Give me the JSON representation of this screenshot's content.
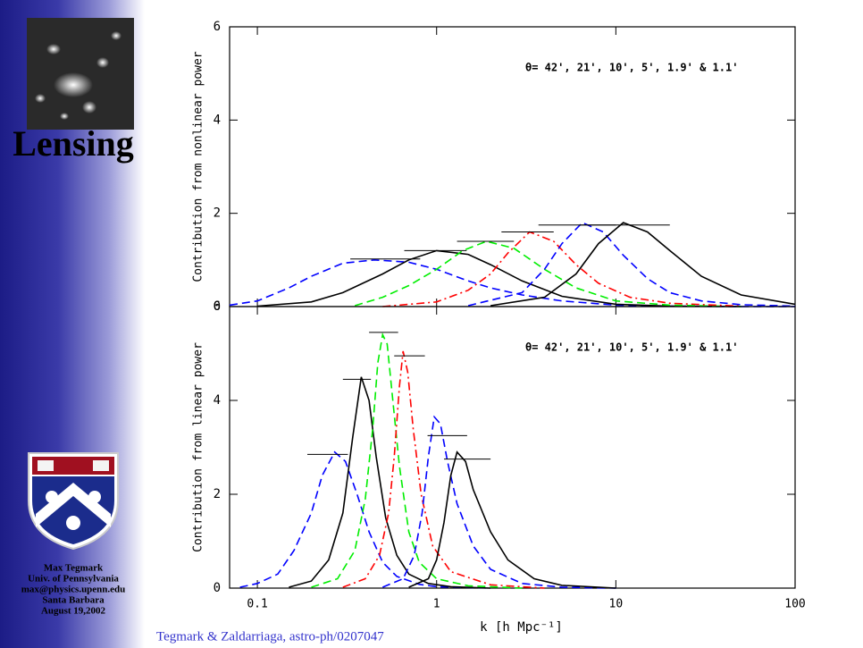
{
  "sidebar": {
    "title": "Lensing",
    "author": "Max Tegmark",
    "affiliation": "Univ. of Pennsylvania",
    "email": "max@physics.upenn.edu",
    "place": "Santa Barbara",
    "date": "August 19,2002"
  },
  "caption": "Tegmark & Zaldarriaga, astro-ph/0207047",
  "chart_data": [
    {
      "type": "line",
      "ylabel": "Contribution from nonlinear power",
      "annotation": "θ= 42', 21', 10', 5', 1.9' & 1.1'",
      "log_x": true,
      "xlim": [
        0.07,
        100
      ],
      "xticks": [
        0.1,
        1,
        10,
        100
      ],
      "ylim": [
        0,
        6
      ],
      "yticks": [
        0,
        2,
        4,
        6
      ],
      "series": [
        {
          "color": "#0000ff",
          "style": "dashed",
          "x": [
            0.07,
            0.1,
            0.15,
            0.2,
            0.3,
            0.45,
            0.7,
            1,
            1.5,
            2,
            3,
            5,
            10,
            20,
            50,
            100
          ],
          "values": [
            0.03,
            0.12,
            0.4,
            0.65,
            0.93,
            1.0,
            0.95,
            0.8,
            0.55,
            0.4,
            0.25,
            0.12,
            0.03,
            0.01,
            0,
            0
          ],
          "range": [
            0.33,
            0.81
          ],
          "range_y": 1.02
        },
        {
          "color": "#000000",
          "style": "solid",
          "x": [
            0.1,
            0.2,
            0.3,
            0.5,
            0.7,
            1,
            1.5,
            2,
            3,
            5,
            10,
            20,
            50
          ],
          "values": [
            0.01,
            0.1,
            0.3,
            0.7,
            1.0,
            1.2,
            1.12,
            0.9,
            0.55,
            0.22,
            0.05,
            0.01,
            0
          ],
          "range": [
            0.66,
            1.47
          ],
          "range_y": 1.2
        },
        {
          "color": "#00ee00",
          "style": "dashed",
          "x": [
            0.35,
            0.5,
            0.7,
            1,
            1.4,
            1.9,
            2.7,
            4,
            6,
            10,
            20,
            50
          ],
          "values": [
            0.02,
            0.2,
            0.45,
            0.8,
            1.2,
            1.4,
            1.25,
            0.8,
            0.4,
            0.12,
            0.03,
            0
          ],
          "range": [
            1.3,
            2.7
          ],
          "range_y": 1.4
        },
        {
          "color": "#ff0000",
          "style": "dashdot",
          "x": [
            0.5,
            1,
            1.5,
            2,
            2.5,
            3.3,
            4.5,
            6,
            8,
            12,
            20,
            50
          ],
          "values": [
            0,
            0.1,
            0.35,
            0.7,
            1.15,
            1.6,
            1.4,
            0.9,
            0.5,
            0.2,
            0.07,
            0.01
          ],
          "range": [
            2.3,
            4.5
          ],
          "range_y": 1.6
        },
        {
          "color": "#0000ff",
          "style": "dashed",
          "x": [
            1.5,
            3,
            4,
            5,
            6.5,
            8.5,
            11,
            15,
            20,
            30,
            50,
            100
          ],
          "values": [
            0.02,
            0.3,
            0.8,
            1.35,
            1.8,
            1.6,
            1.1,
            0.6,
            0.3,
            0.12,
            0.04,
            0.01
          ],
          "range": [
            3.7,
            10
          ],
          "range_y": 1.75
        },
        {
          "color": "#000000",
          "style": "solid",
          "x": [
            2,
            4,
            6,
            8,
            11,
            15,
            20,
            30,
            50,
            100
          ],
          "values": [
            0.02,
            0.2,
            0.7,
            1.35,
            1.8,
            1.6,
            1.2,
            0.65,
            0.25,
            0.05
          ],
          "range": [
            6.3,
            20
          ],
          "range_y": 1.75
        }
      ]
    },
    {
      "type": "line",
      "ylabel": "Contribution from linear power",
      "xlabel": "k [h Mpc⁻¹]",
      "annotation": "θ= 42', 21', 10', 5', 1.9' & 1.1'",
      "log_x": true,
      "xlim": [
        0.07,
        100
      ],
      "xticks": [
        0.1,
        1,
        10,
        100
      ],
      "ylim": [
        0,
        6
      ],
      "yticks": [
        0,
        2,
        4,
        6
      ],
      "series": [
        {
          "color": "#0000ff",
          "style": "dashed",
          "x": [
            0.08,
            0.1,
            0.13,
            0.16,
            0.2,
            0.23,
            0.27,
            0.31,
            0.36,
            0.42,
            0.5,
            0.6,
            0.8,
            1,
            2
          ],
          "values": [
            0.02,
            0.1,
            0.3,
            0.8,
            1.6,
            2.4,
            2.9,
            2.7,
            2.0,
            1.2,
            0.55,
            0.25,
            0.08,
            0.03,
            0
          ],
          "range": [
            0.19,
            0.32
          ],
          "range_y": 2.85
        },
        {
          "color": "#000000",
          "style": "solid",
          "x": [
            0.15,
            0.2,
            0.25,
            0.3,
            0.34,
            0.38,
            0.42,
            0.46,
            0.52,
            0.6,
            0.7,
            0.9,
            1.2,
            2
          ],
          "values": [
            0.02,
            0.15,
            0.6,
            1.6,
            3.2,
            4.5,
            4.0,
            2.8,
            1.5,
            0.7,
            0.3,
            0.1,
            0.03,
            0
          ],
          "range": [
            0.3,
            0.43
          ],
          "range_y": 4.45
        },
        {
          "color": "#00ee00",
          "style": "dashed",
          "x": [
            0.2,
            0.28,
            0.35,
            0.4,
            0.44,
            0.47,
            0.5,
            0.53,
            0.57,
            0.62,
            0.7,
            0.8,
            1,
            1.5,
            3
          ],
          "values": [
            0.02,
            0.2,
            0.8,
            1.9,
            3.4,
            4.8,
            5.4,
            5.2,
            4.0,
            2.6,
            1.2,
            0.55,
            0.2,
            0.05,
            0
          ],
          "range": [
            0.42,
            0.61
          ],
          "range_y": 5.45
        },
        {
          "color": "#ff0000",
          "style": "dashdot",
          "x": [
            0.3,
            0.4,
            0.48,
            0.54,
            0.58,
            0.62,
            0.65,
            0.69,
            0.74,
            0.82,
            0.95,
            1.2,
            2,
            4
          ],
          "values": [
            0.02,
            0.2,
            0.7,
            1.6,
            2.8,
            4.3,
            5.05,
            4.6,
            3.4,
            2.0,
            0.9,
            0.35,
            0.07,
            0
          ],
          "range": [
            0.58,
            0.86
          ],
          "range_y": 4.95
        },
        {
          "color": "#0000ff",
          "style": "dashed",
          "x": [
            0.5,
            0.65,
            0.75,
            0.83,
            0.9,
            0.97,
            1.05,
            1.15,
            1.3,
            1.6,
            2,
            3,
            5,
            10
          ],
          "values": [
            0.02,
            0.2,
            0.7,
            1.6,
            2.8,
            3.65,
            3.5,
            2.7,
            1.8,
            0.9,
            0.4,
            0.1,
            0.02,
            0
          ],
          "range": [
            0.89,
            1.48
          ],
          "range_y": 3.25
        },
        {
          "color": "#000000",
          "style": "solid",
          "x": [
            0.7,
            0.9,
            1.0,
            1.1,
            1.2,
            1.3,
            1.45,
            1.6,
            2,
            2.5,
            3.5,
            5,
            10
          ],
          "values": [
            0.02,
            0.2,
            0.6,
            1.4,
            2.4,
            2.9,
            2.7,
            2.1,
            1.2,
            0.6,
            0.2,
            0.06,
            0
          ],
          "range": [
            1.1,
            2.0
          ],
          "range_y": 2.75
        }
      ]
    }
  ]
}
